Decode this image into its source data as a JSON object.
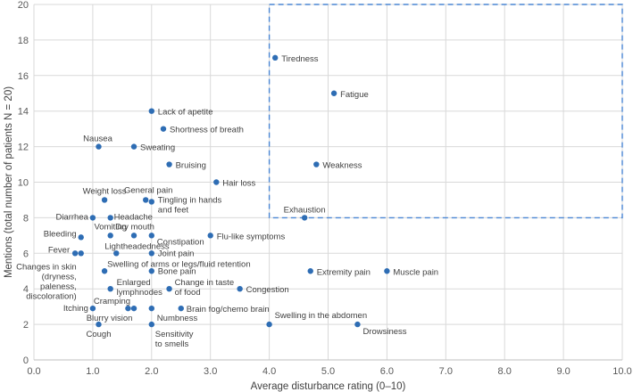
{
  "chart_data": {
    "type": "scatter",
    "title": "",
    "xlabel": "Average disturbance rating (0–10)",
    "ylabel": "Mentions (total number of patients N = 20)",
    "xlim": [
      0,
      10
    ],
    "ylim": [
      0,
      20
    ],
    "x_ticks": [
      "0.0",
      "1.0",
      "2.0",
      "3.0",
      "4.0",
      "5.0",
      "6.0",
      "7.0",
      "8.0",
      "9.0",
      "10.0"
    ],
    "y_ticks": [
      "0",
      "2",
      "4",
      "6",
      "8",
      "10",
      "12",
      "14",
      "16",
      "18",
      "20"
    ],
    "grid": true,
    "marker_color": "#2e6db4",
    "highlight_box": {
      "x": [
        4.0,
        10.0
      ],
      "y": [
        8,
        20
      ],
      "color": "#4a86d4",
      "style": "dashed"
    },
    "points": [
      {
        "label": "Tiredness",
        "x": 4.1,
        "y": 17
      },
      {
        "label": "Fatigue",
        "x": 5.1,
        "y": 15
      },
      {
        "label": "Weakness",
        "x": 4.8,
        "y": 11
      },
      {
        "label": "Exhaustion",
        "x": 4.6,
        "y": 8
      },
      {
        "label": "Lack of apetite",
        "x": 2.0,
        "y": 14
      },
      {
        "label": "Shortness of breath",
        "x": 2.2,
        "y": 13
      },
      {
        "label": "Nausea",
        "x": 1.1,
        "y": 12
      },
      {
        "label": "Sweating",
        "x": 1.7,
        "y": 12
      },
      {
        "label": "Bruising",
        "x": 2.3,
        "y": 11
      },
      {
        "label": "Hair loss",
        "x": 3.1,
        "y": 10
      },
      {
        "label": "Weight loss",
        "x": 1.2,
        "y": 9
      },
      {
        "label": "General pain",
        "x": 1.9,
        "y": 9
      },
      {
        "label": "Tingling in hands and feet",
        "x": 2.0,
        "y": 8.9
      },
      {
        "label": "Diarrhea",
        "x": 1.0,
        "y": 8
      },
      {
        "label": "Headache",
        "x": 1.3,
        "y": 8
      },
      {
        "label": "Bleeding",
        "x": 0.8,
        "y": 6.9
      },
      {
        "label": "Vomiting",
        "x": 1.3,
        "y": 7
      },
      {
        "label": "Dry mouth",
        "x": 1.7,
        "y": 7
      },
      {
        "label": "Constipation",
        "x": 2.0,
        "y": 7
      },
      {
        "label": "Flu-like symptoms",
        "x": 3.0,
        "y": 7
      },
      {
        "label": "Fever",
        "x": 0.7,
        "y": 6
      },
      {
        "label": "Changes in skin (dryness, paleness, discoloration)",
        "x": 0.8,
        "y": 6
      },
      {
        "label": "Lightheadedness",
        "x": 1.4,
        "y": 6
      },
      {
        "label": "Joint pain",
        "x": 2.0,
        "y": 6
      },
      {
        "label": "Swelling of arms or legs/fluid retention",
        "x": 1.2,
        "y": 5
      },
      {
        "label": "Bone pain",
        "x": 2.0,
        "y": 5
      },
      {
        "label": "Extremity pain",
        "x": 4.7,
        "y": 5
      },
      {
        "label": "Muscle pain",
        "x": 6.0,
        "y": 5
      },
      {
        "label": "Enlarged lymphnodes",
        "x": 1.3,
        "y": 4
      },
      {
        "label": "Change in taste of food",
        "x": 2.3,
        "y": 4
      },
      {
        "label": "Congestion",
        "x": 3.5,
        "y": 4
      },
      {
        "label": "Itching",
        "x": 1.0,
        "y": 2.9
      },
      {
        "label": "Cramping",
        "x": 1.7,
        "y": 2.9
      },
      {
        "label": "Blurry vision",
        "x": 1.6,
        "y": 2.9
      },
      {
        "label": "Numbness",
        "x": 2.0,
        "y": 2.9
      },
      {
        "label": "Brain fog/chemo brain",
        "x": 2.5,
        "y": 2.9
      },
      {
        "label": "Cough",
        "x": 1.1,
        "y": 2
      },
      {
        "label": "Sensitivity to smells",
        "x": 2.0,
        "y": 2
      },
      {
        "label": "Swelling in the abdomen",
        "x": 4.0,
        "y": 2
      },
      {
        "label": "Drowsiness",
        "x": 5.5,
        "y": 2
      }
    ]
  }
}
